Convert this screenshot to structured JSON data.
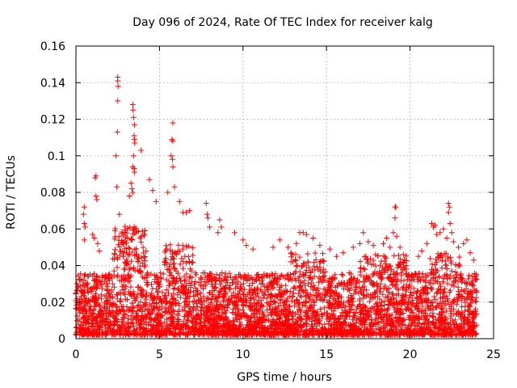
{
  "chart_data": {
    "type": "scatter",
    "title": "Day 096 of 2024, Rate Of TEC Index for receiver kalg",
    "xlabel": "GPS time / hours",
    "ylabel": "ROTI / TECUs",
    "xlim": [
      0,
      25
    ],
    "ylim": [
      0,
      0.16
    ],
    "xticks": [
      0,
      5,
      10,
      15,
      20,
      25
    ],
    "xtick_labels": [
      "0",
      "5",
      "10",
      "15",
      "20",
      "25"
    ],
    "yticks": [
      0,
      0.02,
      0.04,
      0.06,
      0.08,
      0.1,
      0.12,
      0.14,
      0.16
    ],
    "ytick_labels": [
      "0",
      "0.02",
      "0.04",
      "0.06",
      "0.08",
      "0.1",
      "0.12",
      "0.14",
      "0.16"
    ],
    "grid": true,
    "marker": "+",
    "color": "#ff0000",
    "data_x_range": [
      0,
      24
    ],
    "series": [
      {
        "name": "ROTI",
        "points": [
          [
            2.5,
            0.143
          ],
          [
            2.5,
            0.141
          ],
          [
            2.52,
            0.138
          ],
          [
            2.5,
            0.13
          ],
          [
            2.48,
            0.113
          ],
          [
            3.4,
            0.128
          ],
          [
            3.42,
            0.125
          ],
          [
            3.45,
            0.121
          ],
          [
            3.5,
            0.117
          ],
          [
            3.48,
            0.111
          ],
          [
            3.5,
            0.109
          ],
          [
            3.52,
            0.107
          ],
          [
            3.45,
            0.1
          ],
          [
            3.4,
            0.094
          ],
          [
            3.48,
            0.093
          ],
          [
            3.5,
            0.091
          ],
          [
            3.3,
            0.085
          ],
          [
            3.35,
            0.082
          ],
          [
            3.4,
            0.08
          ],
          [
            3.2,
            0.078
          ],
          [
            3.9,
            0.103
          ],
          [
            4.4,
            0.087
          ],
          [
            4.6,
            0.081
          ],
          [
            4.8,
            0.075
          ],
          [
            5.8,
            0.118
          ],
          [
            5.75,
            0.109
          ],
          [
            5.8,
            0.108
          ],
          [
            5.7,
            0.1
          ],
          [
            5.78,
            0.098
          ],
          [
            5.8,
            0.094
          ],
          [
            5.5,
            0.08
          ],
          [
            5.9,
            0.083
          ],
          [
            6.2,
            0.075
          ],
          [
            6.4,
            0.069
          ],
          [
            6.6,
            0.069
          ],
          [
            6.8,
            0.07
          ],
          [
            2.4,
            0.1
          ],
          [
            2.45,
            0.083
          ],
          [
            2.6,
            0.068
          ],
          [
            1.2,
            0.089
          ],
          [
            1.15,
            0.088
          ],
          [
            1.2,
            0.078
          ],
          [
            1.25,
            0.076
          ],
          [
            0.5,
            0.072
          ],
          [
            0.45,
            0.068
          ],
          [
            0.5,
            0.063
          ],
          [
            0.55,
            0.061
          ],
          [
            0.5,
            0.054
          ],
          [
            1.0,
            0.057
          ],
          [
            1.1,
            0.055
          ],
          [
            1.3,
            0.052
          ],
          [
            1.4,
            0.048
          ],
          [
            7.8,
            0.074
          ],
          [
            7.85,
            0.068
          ],
          [
            7.9,
            0.066
          ],
          [
            8.0,
            0.061
          ],
          [
            8.6,
            0.065
          ],
          [
            8.7,
            0.061
          ],
          [
            8.5,
            0.058
          ],
          [
            9.5,
            0.058
          ],
          [
            10.0,
            0.054
          ],
          [
            10.2,
            0.051
          ],
          [
            10.6,
            0.049
          ],
          [
            11.8,
            0.05
          ],
          [
            12.2,
            0.054
          ],
          [
            12.7,
            0.05
          ],
          [
            13.2,
            0.052
          ],
          [
            13.4,
            0.058
          ],
          [
            13.6,
            0.058
          ],
          [
            13.8,
            0.057
          ],
          [
            14.2,
            0.055
          ],
          [
            14.6,
            0.051
          ],
          [
            15.2,
            0.049
          ],
          [
            15.6,
            0.045
          ],
          [
            16.0,
            0.047
          ],
          [
            16.6,
            0.05
          ],
          [
            17.0,
            0.052
          ],
          [
            17.2,
            0.058
          ],
          [
            17.5,
            0.053
          ],
          [
            17.8,
            0.051
          ],
          [
            18.4,
            0.052
          ],
          [
            18.6,
            0.055
          ],
          [
            18.8,
            0.05
          ],
          [
            19.1,
            0.072
          ],
          [
            19.15,
            0.072
          ],
          [
            19.1,
            0.066
          ],
          [
            19.0,
            0.058
          ],
          [
            19.2,
            0.056
          ],
          [
            19.4,
            0.05
          ],
          [
            19.6,
            0.046
          ],
          [
            20.5,
            0.045
          ],
          [
            20.7,
            0.048
          ],
          [
            21.0,
            0.052
          ],
          [
            21.3,
            0.063
          ],
          [
            21.4,
            0.061
          ],
          [
            21.5,
            0.062
          ],
          [
            21.6,
            0.057
          ],
          [
            21.8,
            0.058
          ],
          [
            22.0,
            0.06
          ],
          [
            22.2,
            0.055
          ],
          [
            22.3,
            0.074
          ],
          [
            22.35,
            0.072
          ],
          [
            22.3,
            0.069
          ],
          [
            22.4,
            0.063
          ],
          [
            22.5,
            0.058
          ],
          [
            22.6,
            0.053
          ],
          [
            22.9,
            0.05
          ],
          [
            23.2,
            0.052
          ],
          [
            23.4,
            0.054
          ],
          [
            23.6,
            0.047
          ],
          [
            23.8,
            0.043
          ]
        ]
      }
    ]
  }
}
